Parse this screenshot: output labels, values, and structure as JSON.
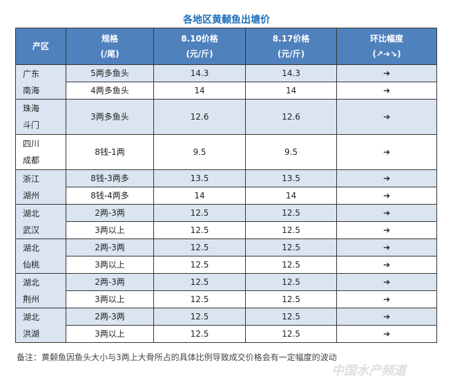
{
  "title": "各地区黄颡鱼出塘价",
  "table": {
    "header": [
      [
        "产区"
      ],
      [
        "规格",
        "(/尾)"
      ],
      [
        "8.10价格",
        "(元/斤)"
      ],
      [
        "8.17价格",
        "(元/斤)"
      ],
      [
        "环比幅度",
        "(↗➔↘)"
      ]
    ],
    "groups": [
      {
        "region": [
          "广东",
          "南海"
        ],
        "rows": [
          [
            "5两多鱼头",
            14.3,
            14.3,
            "➔"
          ],
          [
            "4两多鱼头",
            14,
            14,
            "➔"
          ]
        ]
      },
      {
        "region": [
          "珠海",
          "斗门"
        ],
        "rows": [
          [
            "3两多鱼头",
            12.6,
            12.6,
            "➔"
          ]
        ]
      },
      {
        "region": [
          "四川",
          "成都"
        ],
        "rows": [
          [
            "8钱-1两",
            9.5,
            9.5,
            "➔"
          ]
        ]
      },
      {
        "region": [
          "浙江",
          "湖州"
        ],
        "rows": [
          [
            "8钱-3两多",
            13.5,
            13.5,
            "➔"
          ],
          [
            "8钱-4两多",
            14,
            14,
            "➔"
          ]
        ]
      },
      {
        "region": [
          "湖北",
          "武汉"
        ],
        "rows": [
          [
            "2两-3两",
            12.5,
            12.5,
            "➔"
          ],
          [
            "3两以上",
            12.5,
            12.5,
            "➔"
          ]
        ]
      },
      {
        "region": [
          "湖北",
          "仙桃"
        ],
        "rows": [
          [
            "2两-3两",
            12.5,
            12.5,
            "➔"
          ],
          [
            "3两以上",
            12.5,
            12.5,
            "➔"
          ]
        ]
      },
      {
        "region": [
          "湖北",
          "荆州"
        ],
        "rows": [
          [
            "2两-3两",
            12.5,
            12.5,
            "➔"
          ],
          [
            "3两以上",
            12.5,
            12.5,
            "➔"
          ]
        ]
      },
      {
        "region": [
          "湖北",
          "洪湖"
        ],
        "rows": [
          [
            "2两-3两",
            12.5,
            12.5,
            "➔"
          ],
          [
            "3两以上",
            12.5,
            12.5,
            "➔"
          ]
        ]
      }
    ]
  },
  "note": "备注：黄颡鱼因鱼头大小与3两上大骨所占的具体比例导致成交价格会有一定幅度的波动",
  "watermark": "中国水产频道"
}
